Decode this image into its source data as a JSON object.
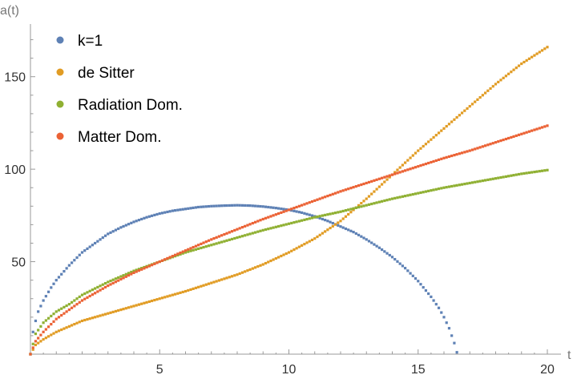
{
  "chart_data": {
    "type": "scatter",
    "xlabel": "t",
    "ylabel": "a(t)",
    "xlim": [
      0,
      20
    ],
    "ylim": [
      0,
      175
    ],
    "xticks": [
      5,
      10,
      15,
      20
    ],
    "yticks": [
      50,
      100,
      150
    ],
    "grid": false,
    "legend_position": "top-left",
    "series": [
      {
        "name": "k=1",
        "color": "#5E81B5",
        "x": [
          0.0,
          0.1,
          0.2,
          0.3,
          0.5,
          0.8,
          1.0,
          1.5,
          2.0,
          2.5,
          3.0,
          3.5,
          4.0,
          4.5,
          5.0,
          5.5,
          6.0,
          6.5,
          7.0,
          7.5,
          8.0,
          8.5,
          9.0,
          9.5,
          10.0,
          10.5,
          11.0,
          11.5,
          12.0,
          12.5,
          13.0,
          13.5,
          14.0,
          14.5,
          15.0,
          15.5,
          15.8,
          16.0,
          16.2,
          16.4,
          16.5
        ],
        "y": [
          0,
          12,
          18,
          23,
          29,
          36,
          40,
          48,
          55,
          60,
          65,
          68.5,
          71.5,
          74,
          76,
          77.5,
          78.5,
          79.5,
          80,
          80.3,
          80.5,
          80.3,
          79.8,
          79,
          78,
          76.5,
          74.5,
          72,
          69,
          66,
          62,
          57.5,
          52.5,
          46.5,
          39.5,
          31,
          25,
          20,
          14,
          6,
          1
        ]
      },
      {
        "name": "de Sitter",
        "color": "#E19C24",
        "x": [
          0.0,
          0.2,
          0.5,
          1.0,
          2.0,
          3.0,
          4.0,
          5.0,
          6.0,
          7.0,
          8.0,
          9.0,
          10.0,
          11.0,
          12.0,
          13.0,
          14.0,
          15.0,
          16.0,
          17.0,
          18.0,
          19.0,
          20.0
        ],
        "y": [
          0,
          5,
          8,
          12,
          18,
          22,
          26,
          30,
          34,
          38.5,
          43,
          48.5,
          55,
          62.5,
          72,
          84,
          97,
          110,
          122,
          134,
          146,
          157,
          166
        ]
      },
      {
        "name": "Radiation Dom.",
        "color": "#8FB032",
        "x": [
          0.0,
          0.2,
          0.5,
          1.0,
          1.5,
          2.0,
          3.0,
          4.0,
          5.0,
          6.0,
          7.0,
          8.0,
          9.0,
          10.0,
          11.0,
          12.0,
          13.0,
          14.0,
          15.0,
          16.0,
          17.0,
          18.0,
          19.0,
          20.0
        ],
        "y": [
          0,
          11,
          17,
          23,
          27,
          32,
          39,
          45,
          50,
          55,
          59,
          63,
          67,
          70.5,
          74,
          77,
          80.5,
          84,
          87,
          90,
          92.5,
          95,
          97.5,
          99.5
        ]
      },
      {
        "name": "Matter Dom.",
        "color": "#EB6235",
        "x": [
          0.0,
          0.2,
          0.5,
          1.0,
          1.5,
          2.0,
          3.0,
          4.0,
          5.0,
          6.0,
          7.0,
          8.0,
          9.0,
          10.0,
          11.0,
          12.0,
          13.0,
          14.0,
          15.0,
          16.0,
          17.0,
          18.0,
          19.0,
          20.0
        ],
        "y": [
          0,
          7,
          12,
          19,
          24,
          29,
          37,
          44,
          50,
          56,
          62,
          67.5,
          73,
          78,
          83,
          88,
          92.5,
          97,
          101.5,
          106,
          110,
          114.5,
          119,
          123.5
        ]
      }
    ]
  }
}
